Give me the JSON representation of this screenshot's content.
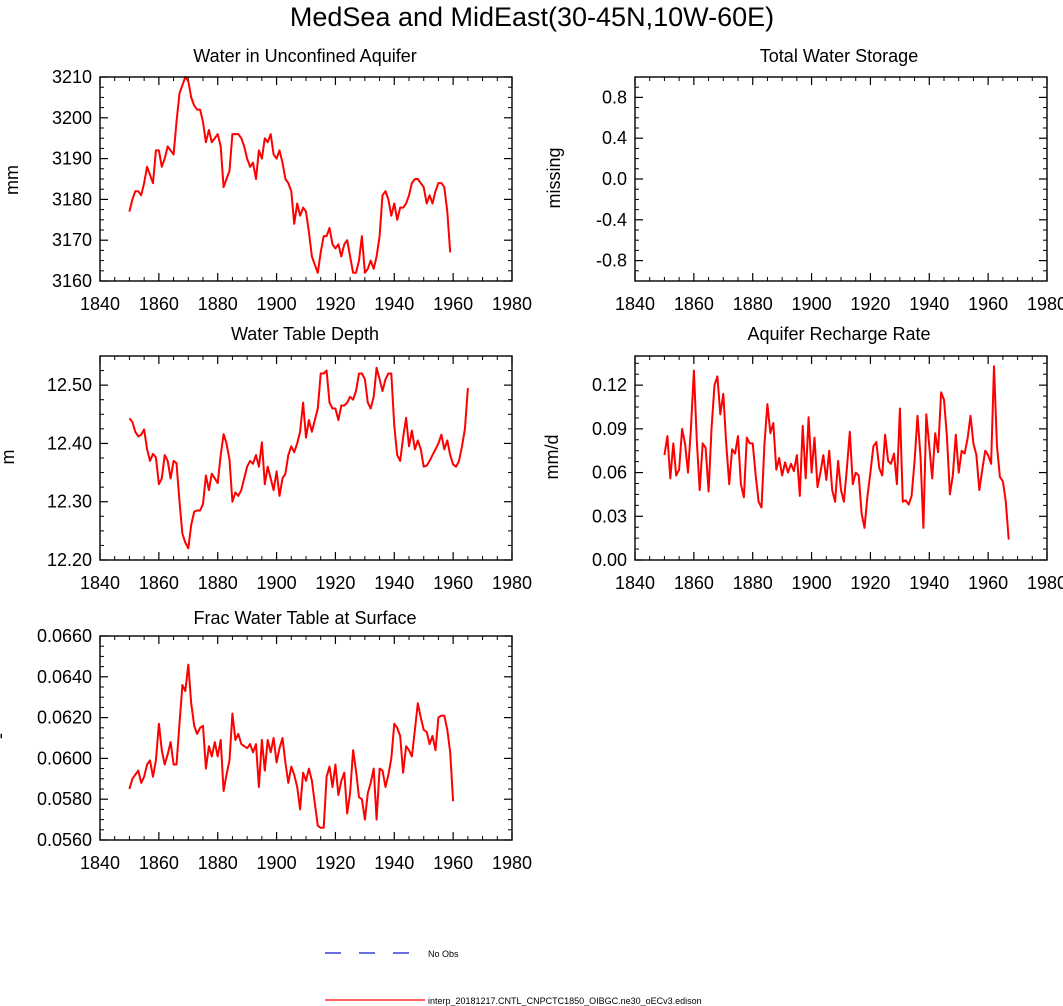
{
  "figure": {
    "title": "MedSea and MidEast(30-45N,10W-60E)",
    "legend": [
      {
        "label": "No Obs",
        "color": "#1414d2",
        "style": "dashed"
      },
      {
        "label": "interp_20181217.CNTL_CNPCTC1850_OIBGC.ne30_oECv3.edison",
        "color": "#ff0000",
        "style": "solid"
      }
    ]
  },
  "chart_data": [
    {
      "id": "aquifer",
      "type": "line",
      "title": "Water in Unconfined Aquifer",
      "ylabel": "mm",
      "xlim": [
        1840,
        1980
      ],
      "ylim": [
        3160,
        3210
      ],
      "xticks": [
        "1840",
        "1860",
        "1880",
        "1900",
        "1920",
        "1940",
        "1960",
        "1980"
      ],
      "yticks": [
        "3160",
        "3170",
        "3180",
        "3190",
        "3200",
        "3210"
      ],
      "series": [
        {
          "name": "interp_20181217.CNTL_CNPCTC1850_OIBGC.ne30_oECv3.edison",
          "color": "#ff0000",
          "x_start": 1850,
          "values": [
            3177,
            3180,
            3182,
            3182,
            3181,
            3184,
            3188,
            3186,
            3184,
            3192,
            3192,
            3188,
            3190,
            3193,
            3192,
            3191,
            3199,
            3206,
            3208,
            3210,
            3209,
            3205,
            3203,
            3202,
            3202,
            3199,
            3194,
            3197,
            3194,
            3195,
            3196,
            3193,
            3183,
            3185,
            3187,
            3196,
            3196,
            3196,
            3195,
            3193,
            3190,
            3188,
            3189,
            3185,
            3192,
            3190,
            3195,
            3194,
            3196,
            3191,
            3190,
            3192,
            3189,
            3185,
            3184,
            3182,
            3174,
            3179,
            3176,
            3178,
            3177,
            3172,
            3166,
            3164,
            3162,
            3167,
            3171,
            3171,
            3173,
            3169,
            3168,
            3169,
            3166,
            3169,
            3170,
            3166,
            3162,
            3162,
            3165,
            3171,
            3162,
            3163,
            3165,
            3163,
            3166,
            3171,
            3181,
            3182,
            3180,
            3176,
            3179,
            3175,
            3178,
            3178,
            3179,
            3181,
            3184,
            3185,
            3185,
            3184,
            3183,
            3179,
            3181,
            3179,
            3182,
            3184,
            3184,
            3183,
            3177,
            3167
          ]
        }
      ]
    },
    {
      "id": "tws",
      "type": "line",
      "title": "Total Water Storage",
      "ylabel": "missing",
      "xlim": [
        1840,
        1980
      ],
      "ylim": [
        -1,
        1
      ],
      "xticks": [
        "1840",
        "1860",
        "1880",
        "1900",
        "1920",
        "1940",
        "1960",
        "1980"
      ],
      "yticks": [
        "-0.8",
        "-0.4",
        "0.0",
        "0.4",
        "0.8"
      ],
      "series": []
    },
    {
      "id": "wtd",
      "type": "line",
      "title": "Water Table Depth",
      "ylabel": "m",
      "xlim": [
        1840,
        1980
      ],
      "ylim": [
        12.2,
        12.55
      ],
      "xticks": [
        "1840",
        "1860",
        "1880",
        "1900",
        "1920",
        "1940",
        "1960",
        "1980"
      ],
      "yticks": [
        "12.20",
        "12.30",
        "12.40",
        "12.50"
      ],
      "series": [
        {
          "name": "interp_20181217.CNTL_CNPCTC1850_OIBGC.ne30_oECv3.edison",
          "color": "#ff0000",
          "x_start": 1850,
          "values": [
            12.443,
            12.437,
            12.42,
            12.412,
            12.415,
            12.424,
            12.39,
            12.37,
            12.382,
            12.376,
            12.33,
            12.34,
            12.38,
            12.37,
            12.34,
            12.37,
            12.366,
            12.3,
            12.245,
            12.23,
            12.22,
            12.26,
            12.283,
            12.285,
            12.285,
            12.296,
            12.345,
            12.32,
            12.348,
            12.34,
            12.332,
            12.38,
            12.416,
            12.4,
            12.372,
            12.3,
            12.316,
            12.31,
            12.32,
            12.34,
            12.36,
            12.37,
            12.365,
            12.38,
            12.36,
            12.402,
            12.33,
            12.36,
            12.34,
            12.32,
            12.352,
            12.31,
            12.34,
            12.348,
            12.38,
            12.395,
            12.385,
            12.4,
            12.42,
            12.47,
            12.41,
            12.44,
            12.42,
            12.44,
            12.46,
            12.52,
            12.52,
            12.525,
            12.47,
            12.46,
            12.46,
            12.44,
            12.465,
            12.465,
            12.47,
            12.48,
            12.475,
            12.49,
            12.52,
            12.52,
            12.51,
            12.47,
            12.46,
            12.48,
            12.53,
            12.51,
            12.49,
            12.51,
            12.52,
            12.52,
            12.43,
            12.38,
            12.37,
            12.41,
            12.444,
            12.395,
            12.422,
            12.39,
            12.405,
            12.39,
            12.36,
            12.362,
            12.37,
            12.38,
            12.39,
            12.4,
            12.415,
            12.39,
            12.405,
            12.38,
            12.364,
            12.36,
            12.37,
            12.395,
            12.425,
            12.495
          ]
        }
      ]
    },
    {
      "id": "recharge",
      "type": "line",
      "title": "Aquifer Recharge Rate",
      "ylabel": "mm/d",
      "xlim": [
        1840,
        1980
      ],
      "ylim": [
        0,
        0.14
      ],
      "xticks": [
        "1840",
        "1860",
        "1880",
        "1900",
        "1920",
        "1940",
        "1960",
        "1980"
      ],
      "yticks": [
        "0.00",
        "0.03",
        "0.06",
        "0.09",
        "0.12"
      ],
      "series": [
        {
          "name": "interp_20181217.CNTL_CNPCTC1850_OIBGC.ne30_oECv3.edison",
          "color": "#ff0000",
          "x_start": 1850,
          "values": [
            0.072,
            0.085,
            0.056,
            0.08,
            0.058,
            0.062,
            0.09,
            0.08,
            0.06,
            0.09,
            0.13,
            0.082,
            0.048,
            0.08,
            0.077,
            0.047,
            0.09,
            0.12,
            0.126,
            0.1,
            0.114,
            0.08,
            0.052,
            0.076,
            0.073,
            0.085,
            0.052,
            0.043,
            0.084,
            0.08,
            0.08,
            0.058,
            0.04,
            0.036,
            0.08,
            0.107,
            0.087,
            0.094,
            0.062,
            0.07,
            0.058,
            0.067,
            0.06,
            0.066,
            0.061,
            0.072,
            0.044,
            0.092,
            0.056,
            0.098,
            0.06,
            0.084,
            0.05,
            0.06,
            0.072,
            0.055,
            0.075,
            0.048,
            0.04,
            0.068,
            0.048,
            0.04,
            0.063,
            0.088,
            0.052,
            0.06,
            0.058,
            0.032,
            0.022,
            0.044,
            0.06,
            0.078,
            0.081,
            0.063,
            0.058,
            0.086,
            0.068,
            0.066,
            0.073,
            0.052,
            0.104,
            0.04,
            0.041,
            0.038,
            0.044,
            0.068,
            0.099,
            0.071,
            0.022,
            0.1,
            0.078,
            0.056,
            0.087,
            0.074,
            0.115,
            0.11,
            0.085,
            0.045,
            0.058,
            0.086,
            0.06,
            0.075,
            0.073,
            0.083,
            0.099,
            0.08,
            0.072,
            0.048,
            0.062,
            0.075,
            0.072,
            0.066,
            0.133,
            0.078,
            0.057,
            0.054,
            0.04,
            0.014
          ]
        }
      ]
    },
    {
      "id": "fwts",
      "type": "line",
      "title": "Frac Water Table at Surface",
      "ylabel": "-",
      "xlim": [
        1840,
        1980
      ],
      "ylim": [
        0.056,
        0.066
      ],
      "xticks": [
        "1840",
        "1860",
        "1880",
        "1900",
        "1920",
        "1940",
        "1960",
        "1980"
      ],
      "yticks": [
        "0.0560",
        "0.0580",
        "0.0600",
        "0.0620",
        "0.0640",
        "0.0660"
      ],
      "series": [
        {
          "name": "interp_20181217.CNTL_CNPCTC1850_OIBGC.ne30_oECv3.edison",
          "color": "#ff0000",
          "x_start": 1850,
          "values": [
            0.0585,
            0.059,
            0.0592,
            0.0594,
            0.0588,
            0.0591,
            0.0597,
            0.0599,
            0.0591,
            0.0599,
            0.0617,
            0.0604,
            0.0597,
            0.0602,
            0.0608,
            0.0597,
            0.0597,
            0.0617,
            0.0636,
            0.0633,
            0.0646,
            0.0627,
            0.0616,
            0.0612,
            0.0615,
            0.0616,
            0.0595,
            0.0606,
            0.0601,
            0.0608,
            0.0601,
            0.0609,
            0.0584,
            0.0592,
            0.0599,
            0.0622,
            0.0609,
            0.0612,
            0.0607,
            0.0606,
            0.0605,
            0.0607,
            0.0603,
            0.0607,
            0.0586,
            0.0609,
            0.0594,
            0.0609,
            0.0603,
            0.061,
            0.0598,
            0.0605,
            0.061,
            0.0598,
            0.0588,
            0.0596,
            0.0592,
            0.0586,
            0.0575,
            0.0593,
            0.0589,
            0.0595,
            0.0589,
            0.0578,
            0.0567,
            0.0566,
            0.0566,
            0.0591,
            0.0596,
            0.0586,
            0.0597,
            0.0582,
            0.0589,
            0.0593,
            0.0573,
            0.0583,
            0.0604,
            0.0594,
            0.0581,
            0.058,
            0.057,
            0.0583,
            0.0588,
            0.0595,
            0.057,
            0.0595,
            0.0594,
            0.0586,
            0.0592,
            0.06,
            0.0617,
            0.0615,
            0.0611,
            0.0593,
            0.0606,
            0.0604,
            0.0601,
            0.0614,
            0.0627,
            0.062,
            0.0614,
            0.0613,
            0.0607,
            0.0611,
            0.0604,
            0.062,
            0.0621,
            0.0621,
            0.0614,
            0.0603,
            0.0579
          ]
        }
      ]
    }
  ]
}
